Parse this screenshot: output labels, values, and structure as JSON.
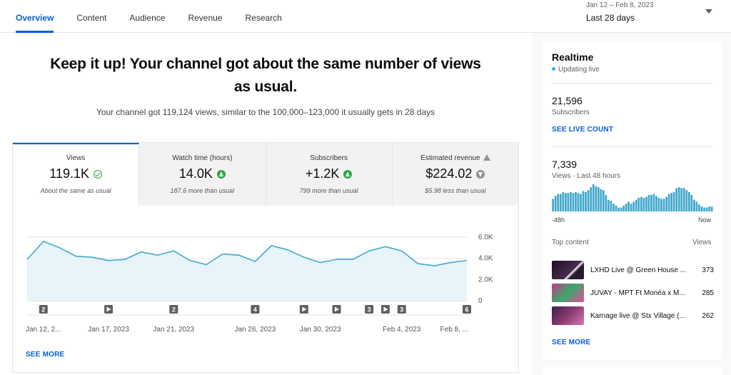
{
  "tabs": [
    {
      "label": "Overview",
      "active": true
    },
    {
      "label": "Content",
      "active": false
    },
    {
      "label": "Audience",
      "active": false
    },
    {
      "label": "Revenue",
      "active": false
    },
    {
      "label": "Research",
      "active": false
    }
  ],
  "date_range": {
    "dates": "Jan 12 – Feb 8, 2023",
    "label": "Last 28 days"
  },
  "headline": {
    "line1": "Keep it up! Your channel got about the same number of views",
    "line2": "as usual.",
    "sub": "Your channel got 119,124 views, similar to the 100,000–123,000 it usually gets in 28 days"
  },
  "metrics": [
    {
      "label": "Views",
      "value": "119.1K",
      "icon": "check-circle-icon",
      "note": "About the same as usual",
      "active": true
    },
    {
      "label": "Watch time (hours)",
      "value": "14.0K",
      "icon": "arrow-up-circle-icon",
      "note": "187.6 more than usual",
      "active": false
    },
    {
      "label": "Subscribers",
      "value": "+1.2K",
      "icon": "arrow-up-circle-icon",
      "note": "799 more than usual",
      "active": false
    },
    {
      "label": "Estimated revenue",
      "value": "$224.02",
      "icon": "arrow-down-circle-icon",
      "note": "$5.98 less than usual",
      "active": false,
      "label_icon": "warning-icon"
    }
  ],
  "chart_data": {
    "type": "area",
    "x": [
      "Jan 12",
      "Jan 13",
      "Jan 14",
      "Jan 15",
      "Jan 16",
      "Jan 17",
      "Jan 18",
      "Jan 19",
      "Jan 20",
      "Jan 21",
      "Jan 22",
      "Jan 23",
      "Jan 24",
      "Jan 25",
      "Jan 26",
      "Jan 27",
      "Jan 28",
      "Jan 29",
      "Jan 30",
      "Jan 31",
      "Feb 1",
      "Feb 2",
      "Feb 3",
      "Feb 4",
      "Feb 5",
      "Feb 6",
      "Feb 7",
      "Feb 8"
    ],
    "values": [
      3900,
      5600,
      5000,
      4200,
      4100,
      3800,
      3900,
      4600,
      4300,
      4700,
      3800,
      3400,
      4400,
      4300,
      3700,
      5200,
      4800,
      4100,
      3600,
      3900,
      3900,
      4700,
      5100,
      4700,
      3500,
      3300,
      3600,
      3800
    ],
    "x_tick_labels": [
      "Jan 12, 2...",
      "Jan 17, 2023",
      "Jan 21, 2023",
      "Jan 26, 2023",
      "Jan 30, 2023",
      "Feb 4, 2023",
      "Feb 8, ..."
    ],
    "x_tick_index": [
      0,
      5,
      9,
      14,
      18,
      23,
      27
    ],
    "y_ticks": [
      "0",
      "2.0K",
      "4.0K",
      "6.0K"
    ],
    "ylim": [
      0,
      6000
    ],
    "line_color": "#41a8cb",
    "fill_color": "#e7f4f9",
    "markers": [
      {
        "index": 1,
        "type": "count",
        "label": "2"
      },
      {
        "index": 5,
        "type": "video"
      },
      {
        "index": 9,
        "type": "count",
        "label": "2"
      },
      {
        "index": 14,
        "type": "count",
        "label": "4"
      },
      {
        "index": 17,
        "type": "video"
      },
      {
        "index": 19,
        "type": "video"
      },
      {
        "index": 21,
        "type": "count",
        "label": "3"
      },
      {
        "index": 22,
        "type": "video"
      },
      {
        "index": 23,
        "type": "count",
        "label": "3"
      },
      {
        "index": 27,
        "type": "count",
        "label": "6"
      }
    ],
    "see_more": "SEE MORE"
  },
  "realtime": {
    "title": "Realtime",
    "status": "Updating live",
    "subscribers": "21,596",
    "subscribers_label": "Subscribers",
    "live_count": "SEE LIVE COUNT",
    "views": "7,339",
    "views_label": "Views · Last 48 hours",
    "axis_left": "-48h",
    "axis_right": "Now",
    "bar_values": [
      13,
      16,
      18,
      18,
      20,
      19,
      19,
      20,
      19,
      20,
      19,
      18,
      21,
      20,
      22,
      25,
      28,
      26,
      25,
      23,
      22,
      17,
      12,
      11,
      8,
      6,
      4,
      4,
      6,
      8,
      10,
      8,
      10,
      12,
      14,
      15,
      14,
      15,
      17,
      17,
      18,
      16,
      14,
      13,
      13,
      15,
      18,
      19,
      20,
      24,
      25,
      24,
      24,
      22,
      20,
      17,
      12,
      10,
      7,
      5,
      4,
      4,
      5,
      5
    ],
    "bar_color": "#41a8cb",
    "top_content_label": "Top content",
    "views_col_label": "Views",
    "top_content": [
      {
        "title": "LXHD Live @ Green House ...",
        "views": "373",
        "thumb": "#2a1a2e"
      },
      {
        "title": "JUVAY - MPT Ft Monéa x M...",
        "views": "285",
        "thumb": "#8a2f5e"
      },
      {
        "title": "Karnage live @ Stx Village (...",
        "views": "262",
        "thumb": "#5a2b4d"
      }
    ],
    "see_more": "SEE MORE"
  }
}
